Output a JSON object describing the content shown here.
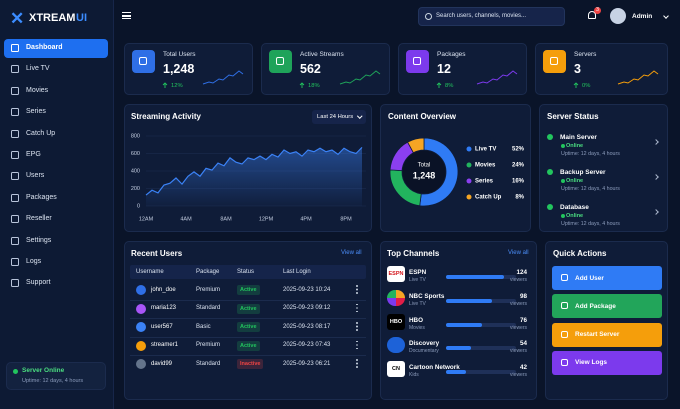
{
  "brand": {
    "name": "XTREAM",
    "suffix": "UI"
  },
  "nav": [
    "Dashboard",
    "Live TV",
    "Movies",
    "Series",
    "Catch Up",
    "EPG",
    "Users",
    "Packages",
    "Reseller",
    "Settings",
    "Logs",
    "Support"
  ],
  "sidebar_status": {
    "title": "Server Online",
    "uptime": "Uptime: 12 days, 4 hours"
  },
  "topbar": {
    "search_placeholder": "Search users, channels, movies...",
    "notifications": "3",
    "user": "Admin"
  },
  "stats": [
    {
      "label": "Total Users",
      "value": "1,248",
      "change": "12%",
      "color": "#2f6fe6"
    },
    {
      "label": "Active Streams",
      "value": "562",
      "change": "18%",
      "color": "#1fa35a"
    },
    {
      "label": "Packages",
      "value": "12",
      "change": "8%",
      "color": "#7c3aed"
    },
    {
      "label": "Servers",
      "value": "3",
      "change": "0%",
      "color": "#f59e0b"
    }
  ],
  "streaming_activity": {
    "type": "line",
    "title": "Streaming Activity",
    "filter": "Last 24 Hours",
    "color": "#3b82f6",
    "x": [
      0,
      0.6,
      1.2,
      1.8,
      2.4,
      3,
      3.6,
      4.2,
      4.8,
      5.4,
      6,
      6.6,
      7.2,
      7.8,
      8.4,
      9,
      9.6,
      10.2,
      10.8,
      11.4,
      12,
      12.6,
      13.2,
      13.8,
      14.4,
      15,
      15.6,
      16.2,
      16.8,
      17.4,
      18,
      18.6,
      19.2,
      19.8,
      20.4,
      21,
      21.6
    ],
    "values": [
      125,
      180,
      150,
      240,
      260,
      320,
      250,
      340,
      390,
      340,
      430,
      410,
      490,
      460,
      550,
      500,
      480,
      550,
      530,
      570,
      530,
      590,
      560,
      640,
      600,
      620,
      570,
      640,
      620,
      660,
      620,
      640,
      590,
      660,
      620,
      600,
      670
    ],
    "xlim": [
      0,
      22
    ],
    "ylim": [
      0,
      800
    ],
    "xticks": [
      {
        "value": 0,
        "label": "12AM"
      },
      {
        "value": 4,
        "label": "4AM"
      },
      {
        "value": 8,
        "label": "8AM"
      },
      {
        "value": 12,
        "label": "12PM"
      },
      {
        "value": 16,
        "label": "4PM"
      },
      {
        "value": 20,
        "label": "8PM"
      }
    ],
    "yticks": [
      0,
      200,
      400,
      600,
      800
    ]
  },
  "content_overview": {
    "type": "pie",
    "title": "Content Overview",
    "center_label": "Total",
    "center_value": "1,248",
    "categories": [
      "Live TV",
      "Movies",
      "Series",
      "Catch Up"
    ],
    "values": [
      52,
      24,
      16,
      8
    ],
    "value_labels": [
      "52%",
      "24%",
      "16%",
      "8%"
    ],
    "colors": [
      "#2f7bf5",
      "#22b45e",
      "#8b3ff0",
      "#f5a524"
    ]
  },
  "server_status": {
    "title": "Server Status",
    "items": [
      {
        "name": "Main Server",
        "status": "Online",
        "uptime": "Uptime: 12 days, 4 hours"
      },
      {
        "name": "Backup Server",
        "status": "Online",
        "uptime": "Uptime: 12 days, 4 hours"
      },
      {
        "name": "Database",
        "status": "Online",
        "uptime": "Uptime: 12 days, 4 hours"
      }
    ]
  },
  "recent_users": {
    "title": "Recent Users",
    "action": "View all",
    "columns": [
      "Username",
      "Package",
      "Status",
      "Last Login"
    ],
    "rows": [
      {
        "username": "john_doe",
        "package": "Premium",
        "status": "Active",
        "last_login": "2025-09-23 10:24",
        "badge_color": "#22c55e",
        "avatar_color": "#2f6fe6"
      },
      {
        "username": "maria123",
        "package": "Standard",
        "status": "Active",
        "last_login": "2025-09-23 09:12",
        "badge_color": "#22c55e",
        "avatar_color": "#a855f7"
      },
      {
        "username": "user567",
        "package": "Basic",
        "status": "Active",
        "last_login": "2025-09-23 08:17",
        "badge_color": "#22c55e",
        "avatar_color": "#3b82f6"
      },
      {
        "username": "streamer1",
        "package": "Premium",
        "status": "Active",
        "last_login": "2025-09-23 07:43",
        "badge_color": "#22c55e",
        "avatar_color": "#f59e0b"
      },
      {
        "username": "david99",
        "package": "Standard",
        "status": "Inactive",
        "last_login": "2025-09-23 06:21",
        "badge_color": "#ef4444",
        "avatar_color": "#64748b"
      }
    ]
  },
  "top_channels": {
    "title": "Top Channels",
    "action": "View all",
    "unit_label": "viewers",
    "color": "#2f7bf5",
    "channels": [
      {
        "logo": "ESPN",
        "name": "ESPN",
        "category": "Live TV",
        "viewers": 124
      },
      {
        "name": "NBC Sports",
        "category": "Live TV",
        "viewers": 98
      },
      {
        "logo": "HBO",
        "name": "HBO",
        "category": "Movies",
        "viewers": 76
      },
      {
        "name": "Discovery",
        "category": "Documentary",
        "viewers": 54
      },
      {
        "logo": "CN",
        "name": "Cartoon Network",
        "category": "Kids",
        "viewers": 42
      }
    ]
  },
  "quick_actions": {
    "title": "Quick Actions",
    "buttons": [
      {
        "label": "Add User",
        "color": "#2f7bf5"
      },
      {
        "label": "Add Package",
        "color": "#22a55a"
      },
      {
        "label": "Restart Server",
        "color": "#f59e0b"
      },
      {
        "label": "View Logs",
        "color": "#7c3aed"
      }
    ]
  }
}
